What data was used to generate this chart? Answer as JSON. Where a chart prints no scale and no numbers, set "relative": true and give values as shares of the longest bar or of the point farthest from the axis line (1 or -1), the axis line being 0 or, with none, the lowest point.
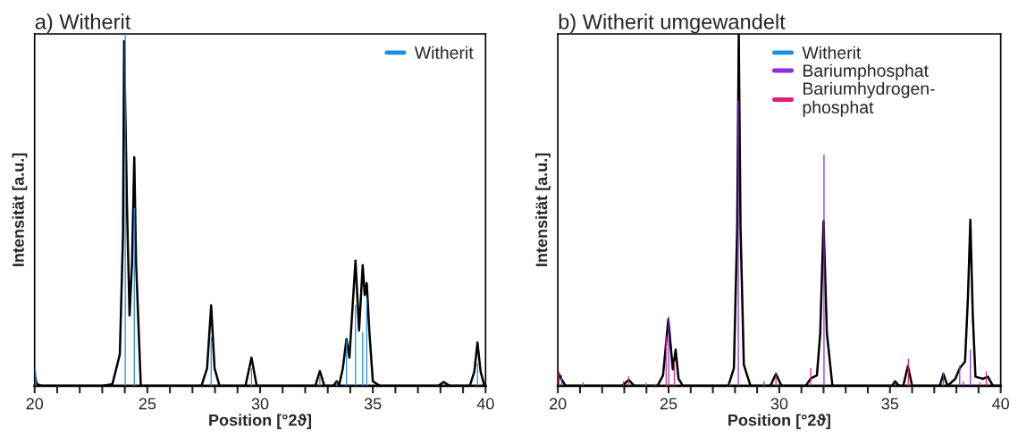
{
  "chart_data": [
    {
      "type": "line",
      "title": "a) Witherit",
      "xlabel": "Position [°2ϑ]",
      "ylabel": "Intensität [a.u.]",
      "relative": true,
      "xlim": [
        20,
        40
      ],
      "xticks": [
        20,
        {
          "value": 21,
          "label": null
        },
        {
          "value": 22,
          "label": null
        },
        {
          "value": 23,
          "label": null
        },
        {
          "value": 24,
          "label": null
        },
        25,
        {
          "value": 26,
          "label": null
        },
        {
          "value": 27,
          "label": null
        },
        {
          "value": 28,
          "label": null
        },
        {
          "value": 29,
          "label": null
        },
        30,
        {
          "value": 31,
          "label": null
        },
        {
          "value": 32,
          "label": null
        },
        {
          "value": 33,
          "label": null
        },
        {
          "value": 34,
          "label": null
        },
        35,
        {
          "value": 36,
          "label": null
        },
        {
          "value": 37,
          "label": null
        },
        {
          "value": 38,
          "label": null
        },
        {
          "value": 39,
          "label": null
        },
        40
      ],
      "tick_labels": "x",
      "legend": "top right",
      "series": [
        {
          "color": "#000000",
          "x": [
            20,
            20.1,
            20.3,
            23.0,
            23.45,
            23.78,
            23.92,
            23.97,
            24.1,
            24.21,
            24.32,
            24.42,
            24.5,
            24.71,
            27.4,
            27.65,
            27.83,
            27.98,
            28.2,
            29.35,
            29.62,
            29.85,
            32.45,
            32.65,
            32.85,
            33.25,
            33.4,
            33.5,
            33.67,
            33.83,
            33.96,
            34.23,
            34.39,
            34.55,
            34.64,
            34.73,
            34.85,
            35.0,
            35.3,
            37.9,
            38.14,
            38.4,
            39.3,
            39.5,
            39.64,
            39.78,
            39.95,
            40
          ],
          "values": [
            0.03,
            0.005,
            0,
            0,
            0.005,
            0.09,
            0.43,
            0.98,
            0.5,
            0.2,
            0.35,
            0.65,
            0.35,
            0,
            0,
            0.05,
            0.229,
            0.05,
            0,
            0,
            0.08,
            0,
            0,
            0.042,
            0,
            0,
            0.013,
            0,
            0.05,
            0.133,
            0.08,
            0.356,
            0.157,
            0.343,
            0.258,
            0.292,
            0.15,
            0.013,
            0,
            0,
            0.011,
            0,
            0,
            0.04,
            0.123,
            0.04,
            0,
            0
          ]
        },
        {
          "type": "bar",
          "name": "Witherit",
          "color": "#1b8fdf",
          "x": [
            20.05,
            24.02,
            24.42,
            27.83,
            29.62,
            32.65,
            33.4,
            33.83,
            34.23,
            34.55,
            34.73,
            38.14,
            39.64
          ],
          "values": [
            0.042,
            1.0,
            0.505,
            0.14,
            0.05,
            0.025,
            0.01,
            0.13,
            0.23,
            0.153,
            0.25,
            0.01,
            0.065
          ]
        }
      ]
    },
    {
      "type": "line",
      "title": "b) Witherit umgewandelt",
      "xlabel": "Position [°2ϑ]",
      "ylabel": "Intensität [a.u.]",
      "relative": true,
      "xlim": [
        20,
        40
      ],
      "xticks": [
        20,
        {
          "value": 21,
          "label": null
        },
        {
          "value": 22,
          "label": null
        },
        {
          "value": 23,
          "label": null
        },
        {
          "value": 24,
          "label": null
        },
        25,
        {
          "value": 26,
          "label": null
        },
        {
          "value": 27,
          "label": null
        },
        {
          "value": 28,
          "label": null
        },
        {
          "value": 29,
          "label": null
        },
        30,
        {
          "value": 31,
          "label": null
        },
        {
          "value": 32,
          "label": null
        },
        {
          "value": 33,
          "label": null
        },
        {
          "value": 34,
          "label": null
        },
        35,
        {
          "value": 36,
          "label": null
        },
        {
          "value": 37,
          "label": null
        },
        {
          "value": 38,
          "label": null
        },
        {
          "value": 39,
          "label": null
        },
        40
      ],
      "tick_labels": "x",
      "legend": "top right",
      "series": [
        {
          "color": "#000000",
          "x": [
            20,
            20.05,
            20.15,
            20.35,
            22.9,
            23.2,
            23.45,
            24.5,
            24.75,
            24.99,
            25.19,
            25.32,
            25.45,
            25.65,
            27.7,
            27.95,
            28.1,
            28.17,
            28.25,
            28.4,
            28.7,
            29.6,
            29.85,
            30.1,
            31.2,
            31.42,
            31.7,
            31.85,
            32.0,
            32.15,
            32.4,
            35.1,
            35.23,
            35.4,
            35.6,
            35.81,
            36.0,
            37.25,
            37.41,
            37.6,
            37.95,
            38.15,
            38.39,
            38.52,
            38.63,
            38.74,
            38.86,
            39.2,
            39.42,
            39.65,
            40
          ],
          "values": [
            0.034,
            0.034,
            0.02,
            0,
            0,
            0.017,
            0,
            0,
            0.03,
            0.189,
            0.047,
            0.103,
            0.02,
            0,
            0,
            0.05,
            0.45,
            1.0,
            0.45,
            0.06,
            0,
            0,
            0.034,
            0,
            0,
            0.021,
            0.03,
            0.15,
            0.468,
            0.15,
            0,
            0,
            0.013,
            0,
            0,
            0.056,
            0,
            0,
            0.034,
            0,
            0.02,
            0.05,
            0.069,
            0.25,
            0.472,
            0.2,
            0.026,
            0.02,
            0.026,
            0,
            0
          ]
        },
        {
          "type": "bar",
          "name": "Witherit",
          "color": "#1b8fdf",
          "x": [
            23.98,
            24.38
          ],
          "values": [
            0.009,
            0.006
          ]
        },
        {
          "type": "bar",
          "name": "Bariumphosphat",
          "color": "#8b2be2",
          "x": [
            20.17,
            25.01,
            28.15,
            32.02,
            35.23,
            37.41,
            38.15,
            38.63,
            39.06
          ],
          "values": [
            0.03,
            0.197,
            0.811,
            0.657,
            0.01,
            0.039,
            0.058,
            0.103,
            0.009
          ]
        },
        {
          "type": "bar",
          "name": "Bariumhydrogen-\nphosphat",
          "color": "#e0207a",
          "x": [
            20.05,
            21.14,
            22.96,
            23.2,
            24.89,
            25.26,
            27.77,
            29.31,
            29.85,
            31.42,
            35.83,
            38.32,
            39.35
          ],
          "values": [
            0.041,
            0.01,
            0.013,
            0.027,
            0.142,
            0.069,
            0.009,
            0.013,
            0.034,
            0.05,
            0.077,
            0.013,
            0.041
          ]
        }
      ]
    }
  ]
}
